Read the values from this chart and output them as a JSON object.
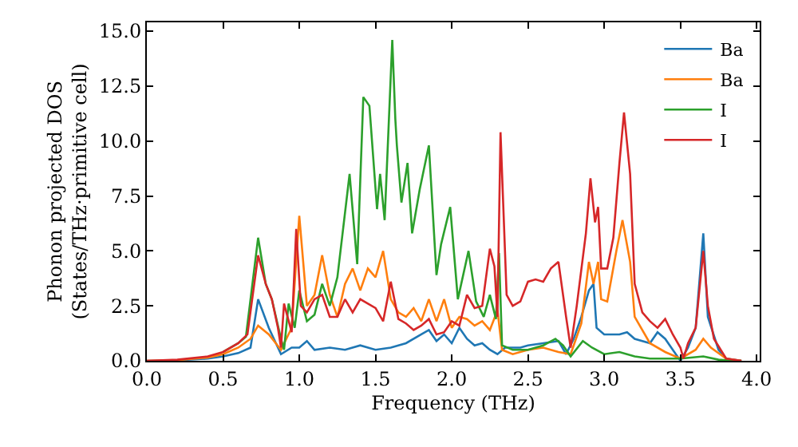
{
  "chart_data": {
    "type": "line",
    "xlabel": "Frequency (THz)",
    "ylabel": "Phonon projected DOS\n(States/THz·primitive cell)",
    "xlim": [
      0,
      4.02
    ],
    "ylim": [
      0,
      15.4
    ],
    "xticks": [
      {
        "value": 0,
        "label": "0.0"
      },
      0.5,
      {
        "value": 1,
        "label": "1.0"
      },
      1.5,
      {
        "value": 2,
        "label": "2.0"
      },
      2.5,
      {
        "value": 3,
        "label": "3.0"
      },
      3.5,
      {
        "value": 4,
        "label": "4.0"
      }
    ],
    "yticks": [
      {
        "value": 0,
        "label": "0.0"
      },
      2.5,
      {
        "value": 5,
        "label": "5.0"
      },
      7.5,
      {
        "value": 10,
        "label": "10.0"
      },
      12.5,
      {
        "value": 15,
        "label": "15.0"
      }
    ],
    "legend": "top right",
    "marker": "none",
    "line_style": "solid",
    "series": [
      {
        "name": "Ba",
        "color": "#1f77b4",
        "x": [
          0,
          0.2,
          0.4,
          0.5,
          0.6,
          0.68,
          0.73,
          0.8,
          0.88,
          0.95,
          1.0,
          1.05,
          1.1,
          1.2,
          1.3,
          1.4,
          1.5,
          1.6,
          1.7,
          1.8,
          1.85,
          1.9,
          1.95,
          2.0,
          2.05,
          2.1,
          2.15,
          2.2,
          2.25,
          2.3,
          2.35,
          2.45,
          2.5,
          2.6,
          2.7,
          2.75,
          2.8,
          2.85,
          2.9,
          2.93,
          2.95,
          3.0,
          3.1,
          3.15,
          3.2,
          3.3,
          3.35,
          3.4,
          3.45,
          3.5,
          3.55,
          3.6,
          3.65,
          3.68,
          3.75,
          3.8,
          3.9
        ],
        "values": [
          0,
          0.02,
          0.1,
          0.2,
          0.35,
          0.6,
          2.8,
          1.5,
          0.3,
          0.6,
          0.6,
          0.9,
          0.5,
          0.6,
          0.5,
          0.7,
          0.5,
          0.6,
          0.8,
          1.2,
          1.4,
          0.9,
          1.2,
          0.8,
          1.5,
          1.0,
          0.7,
          0.8,
          0.5,
          0.3,
          0.6,
          0.6,
          0.7,
          0.8,
          0.9,
          0.3,
          1.0,
          2.0,
          3.2,
          3.5,
          1.5,
          1.2,
          1.2,
          1.3,
          1.0,
          0.8,
          1.3,
          1.0,
          0.5,
          0.0,
          0.6,
          1.5,
          5.8,
          2.0,
          0.5,
          0.1,
          0
        ]
      },
      {
        "name": "Ba",
        "color": "#ff7f0e",
        "x": [
          0,
          0.2,
          0.4,
          0.5,
          0.6,
          0.68,
          0.73,
          0.8,
          0.88,
          0.95,
          1.0,
          1.05,
          1.1,
          1.15,
          1.2,
          1.25,
          1.3,
          1.35,
          1.4,
          1.45,
          1.5,
          1.55,
          1.6,
          1.65,
          1.7,
          1.75,
          1.8,
          1.85,
          1.9,
          1.95,
          2.0,
          2.05,
          2.1,
          2.15,
          2.2,
          2.25,
          2.3,
          2.33,
          2.4,
          2.5,
          2.6,
          2.7,
          2.78,
          2.85,
          2.9,
          2.93,
          2.96,
          2.98,
          3.02,
          3.08,
          3.12,
          3.17,
          3.2,
          3.3,
          3.4,
          3.5,
          3.6,
          3.65,
          3.7,
          3.8,
          3.9
        ],
        "values": [
          0,
          0.03,
          0.15,
          0.3,
          0.6,
          1.0,
          1.6,
          1.2,
          0.5,
          1.5,
          6.6,
          2.5,
          3.0,
          4.8,
          3.0,
          2.0,
          3.5,
          4.2,
          3.2,
          4.2,
          3.8,
          5.0,
          2.8,
          2.2,
          2.0,
          2.4,
          1.8,
          2.8,
          1.8,
          2.8,
          1.5,
          2.0,
          1.9,
          1.6,
          1.8,
          1.4,
          2.3,
          0.5,
          0.3,
          0.5,
          0.6,
          0.4,
          0.3,
          1.7,
          4.5,
          3.5,
          4.5,
          2.8,
          2.7,
          5.0,
          6.4,
          4.5,
          2.0,
          0.8,
          0.4,
          0.1,
          0.5,
          1.0,
          0.6,
          0.1,
          0
        ]
      },
      {
        "name": "I",
        "color": "#2ca02c",
        "x": [
          0.5,
          0.6,
          0.65,
          0.73,
          0.78,
          0.82,
          0.88,
          0.9,
          0.93,
          0.97,
          1.0,
          1.05,
          1.1,
          1.15,
          1.2,
          1.25,
          1.33,
          1.38,
          1.42,
          1.46,
          1.51,
          1.53,
          1.56,
          1.61,
          1.63,
          1.64,
          1.67,
          1.71,
          1.74,
          1.79,
          1.85,
          1.9,
          1.93,
          1.99,
          2.04,
          2.11,
          2.16,
          2.21,
          2.25,
          2.29,
          2.31,
          2.33,
          2.4,
          2.5,
          2.6,
          2.68,
          2.73,
          2.78,
          2.86,
          2.92,
          3.0,
          3.1,
          3.2,
          3.3,
          3.5,
          3.65,
          3.75,
          3.85,
          3.9
        ],
        "values": [
          0.4,
          0.8,
          1.1,
          5.6,
          3.5,
          2.8,
          1.0,
          0.5,
          2.6,
          1.5,
          3.2,
          1.8,
          2.1,
          3.5,
          2.5,
          3.8,
          8.5,
          4.4,
          12.0,
          11.6,
          6.9,
          8.5,
          6.4,
          14.6,
          11.0,
          9.8,
          7.2,
          9.0,
          5.8,
          7.8,
          9.8,
          3.9,
          5.3,
          7.0,
          2.8,
          5.0,
          2.7,
          2.0,
          3.0,
          1.9,
          4.9,
          0.7,
          0.5,
          0.5,
          0.7,
          1.0,
          0.7,
          0.2,
          0.9,
          0.6,
          0.3,
          0.4,
          0.2,
          0.1,
          0.1,
          0.2,
          0.05,
          0,
          0
        ]
      },
      {
        "name": "I",
        "color": "#d62728",
        "x": [
          0,
          0.2,
          0.4,
          0.5,
          0.6,
          0.66,
          0.73,
          0.78,
          0.82,
          0.86,
          0.88,
          0.9,
          0.95,
          0.98,
          1.01,
          1.05,
          1.1,
          1.15,
          1.2,
          1.25,
          1.3,
          1.35,
          1.4,
          1.45,
          1.5,
          1.55,
          1.6,
          1.65,
          1.7,
          1.75,
          1.8,
          1.85,
          1.9,
          1.95,
          2.0,
          2.05,
          2.1,
          2.15,
          2.2,
          2.25,
          2.28,
          2.3,
          2.32,
          2.36,
          2.4,
          2.45,
          2.5,
          2.55,
          2.6,
          2.65,
          2.7,
          2.75,
          2.78,
          2.82,
          2.88,
          2.91,
          2.94,
          2.96,
          2.98,
          3.02,
          3.06,
          3.1,
          3.13,
          3.17,
          3.2,
          3.25,
          3.3,
          3.35,
          3.4,
          3.45,
          3.5,
          3.52,
          3.55,
          3.6,
          3.65,
          3.68,
          3.72,
          3.8,
          3.9
        ],
        "values": [
          0,
          0.05,
          0.2,
          0.4,
          0.8,
          1.2,
          4.8,
          3.5,
          2.8,
          1.5,
          0.6,
          2.6,
          1.3,
          6.0,
          2.5,
          2.2,
          2.8,
          3.0,
          2.0,
          2.0,
          2.8,
          2.2,
          2.8,
          2.6,
          2.4,
          1.8,
          3.6,
          1.9,
          1.7,
          1.4,
          1.6,
          1.9,
          1.2,
          1.3,
          1.8,
          1.6,
          3.0,
          2.4,
          2.5,
          5.1,
          4.3,
          2.0,
          10.4,
          3.0,
          2.5,
          2.7,
          3.6,
          3.7,
          3.6,
          4.2,
          4.5,
          2.0,
          0.6,
          2.5,
          5.8,
          8.3,
          6.3,
          7.0,
          4.2,
          4.2,
          5.6,
          9.0,
          11.3,
          8.5,
          3.5,
          2.2,
          1.8,
          1.5,
          1.9,
          1.2,
          0.6,
          0.1,
          0.8,
          1.5,
          5.0,
          2.5,
          1.0,
          0.1,
          0
        ]
      }
    ]
  }
}
